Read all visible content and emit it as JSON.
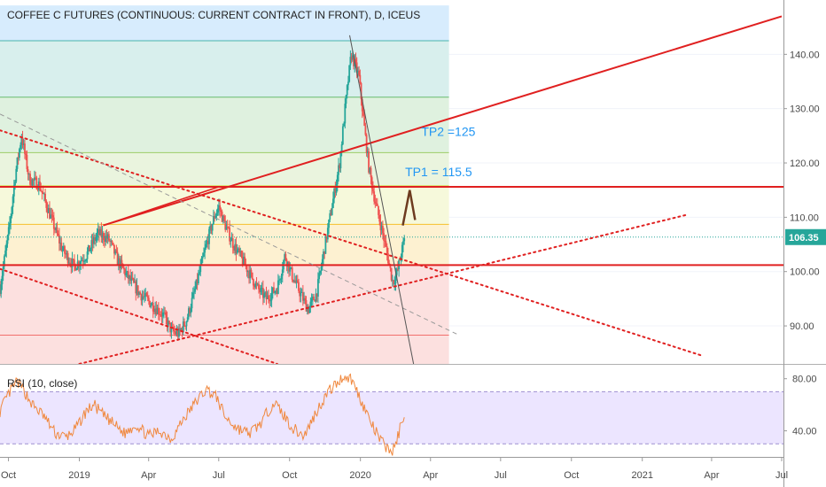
{
  "chart_data": {
    "type": "candlestick",
    "title": "COFFEE C FUTURES (CONTINUOUS: CURRENT CONTRACT IN FRONT), D, ICEUS",
    "price_axis": {
      "ylim": [
        83.0,
        150.0
      ],
      "ticks": [
        90,
        100,
        110,
        120,
        130,
        140
      ],
      "tick_labels": [
        "90.00",
        "100.00",
        "110.00",
        "120.00",
        "130.00",
        "140.00"
      ]
    },
    "time_axis": {
      "range": [
        "2018-09-20",
        "2021-07-01"
      ],
      "ticks": [
        {
          "date": "2018-10-01",
          "label": "Oct"
        },
        {
          "date": "2019-01-01",
          "label": "2019"
        },
        {
          "date": "2019-04-01",
          "label": "Apr"
        },
        {
          "date": "2019-07-01",
          "label": "Jul"
        },
        {
          "date": "2019-10-01",
          "label": "Oct"
        },
        {
          "date": "2020-01-01",
          "label": "2020"
        },
        {
          "date": "2020-04-01",
          "label": "Apr"
        },
        {
          "date": "2020-07-01",
          "label": "Jul"
        },
        {
          "date": "2020-10-01",
          "label": "Oct"
        },
        {
          "date": "2021-01-01",
          "label": "2021"
        },
        {
          "date": "2021-04-01",
          "label": "Apr"
        },
        {
          "date": "2021-07-01",
          "label": "Jul"
        }
      ]
    },
    "last_price": {
      "value": 106.35,
      "label": "106.35",
      "color": "#26a69a"
    },
    "colors": {
      "up": "#26a69a",
      "down": "#ef5350",
      "trend": "#e02020",
      "rsi_line": "#f0883e",
      "rsi_band": "#e6dcff",
      "arrow": "#6d3b1f",
      "annotation": "#2196f3"
    },
    "price_path": [
      [
        "2018-09-20",
        97
      ],
      [
        "2018-10-02",
        108
      ],
      [
        "2018-10-10",
        118
      ],
      [
        "2018-10-18",
        125
      ],
      [
        "2018-10-28",
        117
      ],
      [
        "2018-11-10",
        116
      ],
      [
        "2018-11-25",
        110
      ],
      [
        "2018-12-10",
        104
      ],
      [
        "2018-12-25",
        101
      ],
      [
        "2019-01-10",
        103
      ],
      [
        "2019-01-25",
        107
      ],
      [
        "2019-02-08",
        106
      ],
      [
        "2019-02-20",
        102
      ],
      [
        "2019-03-05",
        99
      ],
      [
        "2019-03-20",
        96
      ],
      [
        "2019-04-05",
        94
      ],
      [
        "2019-04-20",
        92
      ],
      [
        "2019-05-01",
        89
      ],
      [
        "2019-05-10",
        88.5
      ],
      [
        "2019-05-20",
        91
      ],
      [
        "2019-06-01",
        97
      ],
      [
        "2019-06-15",
        105
      ],
      [
        "2019-06-25",
        110
      ],
      [
        "2019-07-01",
        112
      ],
      [
        "2019-07-08",
        109
      ],
      [
        "2019-07-20",
        105
      ],
      [
        "2019-08-05",
        101
      ],
      [
        "2019-08-20",
        97
      ],
      [
        "2019-09-01",
        95
      ],
      [
        "2019-09-15",
        97
      ],
      [
        "2019-09-25",
        103
      ],
      [
        "2019-10-05",
        99
      ],
      [
        "2019-10-15",
        96
      ],
      [
        "2019-10-25",
        93
      ],
      [
        "2019-11-05",
        96
      ],
      [
        "2019-11-15",
        104
      ],
      [
        "2019-11-25",
        112
      ],
      [
        "2019-12-05",
        120
      ],
      [
        "2019-12-12",
        130
      ],
      [
        "2019-12-20",
        140
      ],
      [
        "2019-12-30",
        136
      ],
      [
        "2020-01-05",
        128
      ],
      [
        "2020-01-12",
        119
      ],
      [
        "2020-01-20",
        113
      ],
      [
        "2020-01-30",
        107
      ],
      [
        "2020-02-05",
        103
      ],
      [
        "2020-02-12",
        98
      ],
      [
        "2020-02-18",
        100
      ],
      [
        "2020-02-24",
        104
      ],
      [
        "2020-02-28",
        106.35
      ]
    ],
    "fib_levels": [
      {
        "value": 83.0,
        "fill": "#ef5350"
      },
      {
        "value": 88.3,
        "fill": "#ef5350"
      },
      {
        "value": 101.2,
        "fill": "#ef5350"
      },
      {
        "value": 108.7,
        "fill": "#f5b400"
      },
      {
        "value": 115.8,
        "fill": "#cddc39"
      },
      {
        "value": 121.9,
        "fill": "#8bc34a"
      },
      {
        "value": 132.1,
        "fill": "#4caf50"
      },
      {
        "value": 142.5,
        "fill": "#26a69a"
      },
      {
        "value": 149.0,
        "fill": "#2196f3"
      }
    ],
    "horizontal_lines": [
      {
        "value": 115.6,
        "color": "#e02020",
        "style": "solid"
      },
      {
        "value": 101.2,
        "color": "#e02020",
        "style": "solid"
      }
    ],
    "trend_lines": [
      {
        "p1": [
          "2019-02-01",
          108.5
        ],
        "p2": [
          "2021-07-01",
          147.0
        ],
        "style": "solid",
        "color": "#e02020",
        "width": 2
      },
      {
        "p1": [
          "2019-02-01",
          108.5
        ],
        "p2": [
          "2019-07-01",
          115.6
        ],
        "style": "solid",
        "color": "#e02020",
        "width": 1.5
      },
      {
        "p1": [
          "2019-01-01",
          83.0
        ],
        "p2": [
          "2021-03-01",
          110.5
        ],
        "style": "dotted",
        "color": "#e02020",
        "width": 2
      },
      {
        "p1": [
          "2018-09-20",
          100.5
        ],
        "p2": [
          "2019-09-15",
          83.0
        ],
        "style": "dotted",
        "color": "#e02020",
        "width": 2
      },
      {
        "p1": [
          "2018-09-20",
          126.0
        ],
        "p2": [
          "2021-03-20",
          84.5
        ],
        "style": "dotted",
        "color": "#e02020",
        "width": 2
      },
      {
        "p1": [
          "2018-09-20",
          129.0
        ],
        "p2": [
          "2020-05-05",
          88.5
        ],
        "style": "dashed",
        "color": "#999999",
        "width": 1
      },
      {
        "p1": [
          "2019-12-18",
          143.5
        ],
        "p2": [
          "2020-03-10",
          83.0
        ],
        "style": "solid",
        "color": "#555555",
        "width": 1
      }
    ],
    "annotations": [
      {
        "text": "TP2 =125",
        "date": "2020-03-20",
        "value": 125.0,
        "color": "#2196f3"
      },
      {
        "text": "TP1 = 115.5",
        "date": "2020-02-28",
        "value": 117.6,
        "color": "#2196f3"
      }
    ],
    "arrow": {
      "from": [
        "2020-02-25",
        108.5
      ],
      "tip": [
        "2020-03-05",
        115.0
      ],
      "to": [
        "2020-03-12",
        109.5
      ]
    },
    "rsi": {
      "label": "RSI (10, close)",
      "ylim": [
        20,
        90
      ],
      "ticks": [
        40,
        80
      ],
      "tick_labels": [
        "40.00",
        "80.00"
      ],
      "band": [
        30,
        70
      ],
      "path": [
        [
          "2018-09-20",
          55
        ],
        [
          "2018-10-01",
          68
        ],
        [
          "2018-10-12",
          78
        ],
        [
          "2018-10-20",
          72
        ],
        [
          "2018-11-01",
          60
        ],
        [
          "2018-11-15",
          52
        ],
        [
          "2018-12-01",
          38
        ],
        [
          "2018-12-15",
          35
        ],
        [
          "2018-12-28",
          42
        ],
        [
          "2019-01-10",
          55
        ],
        [
          "2019-01-20",
          60
        ],
        [
          "2019-02-01",
          52
        ],
        [
          "2019-02-15",
          45
        ],
        [
          "2019-03-01",
          38
        ],
        [
          "2019-03-15",
          45
        ],
        [
          "2019-04-01",
          36
        ],
        [
          "2019-04-15",
          40
        ],
        [
          "2019-05-01",
          34
        ],
        [
          "2019-05-15",
          48
        ],
        [
          "2019-06-01",
          62
        ],
        [
          "2019-06-15",
          72
        ],
        [
          "2019-06-28",
          66
        ],
        [
          "2019-07-10",
          50
        ],
        [
          "2019-07-25",
          42
        ],
        [
          "2019-08-10",
          38
        ],
        [
          "2019-08-25",
          46
        ],
        [
          "2019-09-10",
          62
        ],
        [
          "2019-09-20",
          55
        ],
        [
          "2019-10-05",
          42
        ],
        [
          "2019-10-20",
          36
        ],
        [
          "2019-11-05",
          55
        ],
        [
          "2019-11-20",
          70
        ],
        [
          "2019-12-01",
          76
        ],
        [
          "2019-12-10",
          82
        ],
        [
          "2019-12-20",
          80
        ],
        [
          "2019-12-28",
          70
        ],
        [
          "2020-01-08",
          55
        ],
        [
          "2020-01-18",
          42
        ],
        [
          "2020-01-28",
          32
        ],
        [
          "2020-02-06",
          26
        ],
        [
          "2020-02-12",
          24
        ],
        [
          "2020-02-18",
          34
        ],
        [
          "2020-02-24",
          48
        ],
        [
          "2020-02-28",
          55
        ]
      ]
    }
  }
}
